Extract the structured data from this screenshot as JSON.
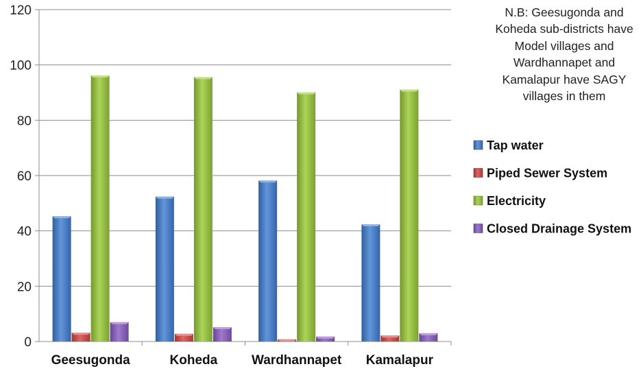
{
  "chart_data": {
    "type": "bar",
    "categories": [
      "Geesugonda",
      "Koheda",
      "Wardhannapet",
      "Kamalapur"
    ],
    "series": [
      {
        "name": "Tap water",
        "values": [
          45.3,
          52.4,
          58.2,
          42.4
        ],
        "color": "#3f7ed3"
      },
      {
        "name": "Piped Sewer System",
        "values": [
          3.2,
          2.8,
          0.8,
          2.2
        ],
        "color": "#d64541"
      },
      {
        "name": "Electricity",
        "values": [
          96.2,
          95.6,
          90.1,
          91.1
        ],
        "color": "#9acb36"
      },
      {
        "name": "Closed Drainage System",
        "values": [
          7.0,
          5.2,
          1.8,
          3.0
        ],
        "color": "#8a5cc2"
      }
    ],
    "ylim": [
      0,
      120
    ],
    "yticks": [
      "0",
      "20",
      "40",
      "60",
      "80",
      "100",
      "120"
    ],
    "grid": true,
    "legend_position": "right",
    "annotation": "N.B: Geesugonda and Koheda sub-districts have Model villages and Wardhannapet and Kamalapur have SAGY villages in them"
  }
}
